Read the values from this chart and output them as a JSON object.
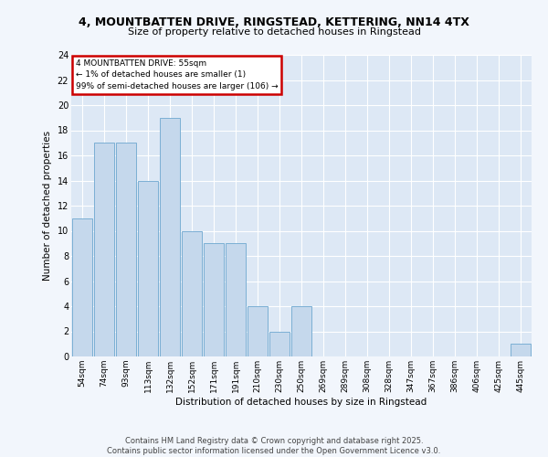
{
  "title_line1": "4, MOUNTBATTEN DRIVE, RINGSTEAD, KETTERING, NN14 4TX",
  "title_line2": "Size of property relative to detached houses in Ringstead",
  "xlabel": "Distribution of detached houses by size in Ringstead",
  "ylabel": "Number of detached properties",
  "categories": [
    "54sqm",
    "74sqm",
    "93sqm",
    "113sqm",
    "132sqm",
    "152sqm",
    "171sqm",
    "191sqm",
    "210sqm",
    "230sqm",
    "250sqm",
    "269sqm",
    "289sqm",
    "308sqm",
    "328sqm",
    "347sqm",
    "367sqm",
    "386sqm",
    "406sqm",
    "425sqm",
    "445sqm"
  ],
  "values": [
    11,
    17,
    17,
    14,
    19,
    10,
    9,
    9,
    4,
    2,
    4,
    0,
    0,
    0,
    0,
    0,
    0,
    0,
    0,
    0,
    1
  ],
  "bar_color": "#c5d8ec",
  "bar_edge_color": "#7bafd4",
  "ylim": [
    0,
    24
  ],
  "yticks": [
    0,
    2,
    4,
    6,
    8,
    10,
    12,
    14,
    16,
    18,
    20,
    22,
    24
  ],
  "annotation_line1": "4 MOUNTBATTEN DRIVE: 55sqm",
  "annotation_line2": "← 1% of detached houses are smaller (1)",
  "annotation_line3": "99% of semi-detached houses are larger (106) →",
  "annotation_box_facecolor": "#ffffff",
  "annotation_box_edgecolor": "#cc0000",
  "background_color": "#dde8f5",
  "grid_color": "#ffffff",
  "fig_facecolor": "#f2f6fc",
  "footer_text": "Contains HM Land Registry data © Crown copyright and database right 2025.\nContains public sector information licensed under the Open Government Licence v3.0."
}
